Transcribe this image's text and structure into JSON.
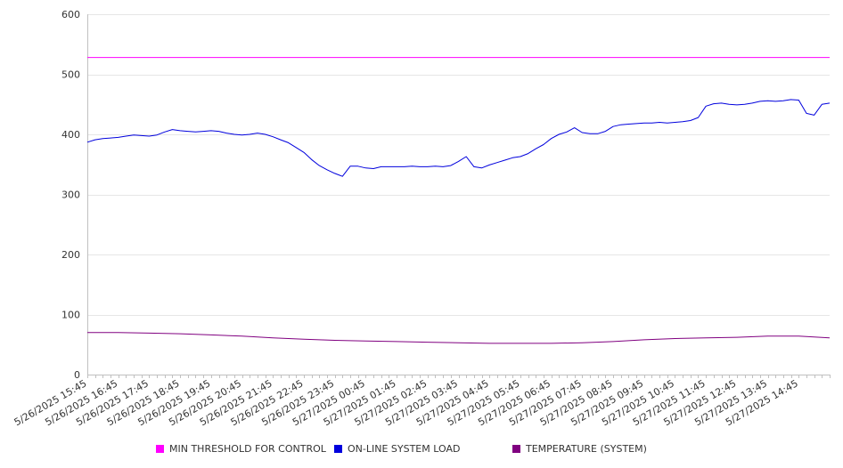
{
  "colors": {
    "background": "#ffffff",
    "grid": "#e6e6e6",
    "axis": "#c0c0c0",
    "text": "#333333"
  },
  "chart_data": {
    "type": "line",
    "title": "",
    "xlabel": "",
    "ylabel": "",
    "ylim": [
      0,
      600
    ],
    "y_ticks": [
      0,
      100,
      200,
      300,
      400,
      500,
      600
    ],
    "grid": "horizontal",
    "legend_position": "bottom",
    "x_labels": [
      "5/26/2025 15:45",
      "5/26/2025 16:45",
      "5/26/2025 17:45",
      "5/26/2025 18:45",
      "5/26/2025 19:45",
      "5/26/2025 20:45",
      "5/26/2025 21:45",
      "5/26/2025 22:45",
      "5/26/2025 23:45",
      "5/27/2025 00:45",
      "5/27/2025 01:45",
      "5/27/2025 02:45",
      "5/27/2025 03:45",
      "5/27/2025 04:45",
      "5/27/2025 05:45",
      "5/27/2025 06:45",
      "5/27/2025 07:45",
      "5/27/2025 08:45",
      "5/27/2025 09:45",
      "5/27/2025 10:45",
      "5/27/2025 11:45",
      "5/27/2025 12:45",
      "5/27/2025 13:45",
      "5/27/2025 14:45"
    ],
    "x_start": "5/26/2025 15:45",
    "x_end": "5/27/2025 15:45",
    "series": [
      {
        "name": "MIN THRESHOLD FOR CONTROL",
        "color": "#ff00ff",
        "points": [
          [
            "5/26/2025 15:45",
            528
          ],
          [
            "5/27/2025 15:45",
            528
          ]
        ]
      },
      {
        "name": "ON-LINE SYSTEM LOAD",
        "color": "#0000dd",
        "points": [
          [
            "5/26/2025 15:45",
            387
          ],
          [
            "5/26/2025 16:00",
            391
          ],
          [
            "5/26/2025 16:15",
            393
          ],
          [
            "5/26/2025 16:30",
            394
          ],
          [
            "5/26/2025 16:45",
            395
          ],
          [
            "5/26/2025 17:00",
            397
          ],
          [
            "5/26/2025 17:15",
            399
          ],
          [
            "5/26/2025 17:30",
            398
          ],
          [
            "5/26/2025 17:45",
            397
          ],
          [
            "5/26/2025 18:00",
            399
          ],
          [
            "5/26/2025 18:15",
            404
          ],
          [
            "5/26/2025 18:30",
            408
          ],
          [
            "5/26/2025 18:45",
            406
          ],
          [
            "5/26/2025 19:00",
            405
          ],
          [
            "5/26/2025 19:15",
            404
          ],
          [
            "5/26/2025 19:30",
            405
          ],
          [
            "5/26/2025 19:45",
            406
          ],
          [
            "5/26/2025 20:00",
            405
          ],
          [
            "5/26/2025 20:15",
            402
          ],
          [
            "5/26/2025 20:30",
            400
          ],
          [
            "5/26/2025 20:45",
            399
          ],
          [
            "5/26/2025 21:00",
            400
          ],
          [
            "5/26/2025 21:15",
            402
          ],
          [
            "5/26/2025 21:30",
            400
          ],
          [
            "5/26/2025 21:45",
            396
          ],
          [
            "5/26/2025 22:00",
            391
          ],
          [
            "5/26/2025 22:15",
            386
          ],
          [
            "5/26/2025 22:30",
            378
          ],
          [
            "5/26/2025 22:45",
            370
          ],
          [
            "5/26/2025 23:00",
            358
          ],
          [
            "5/26/2025 23:15",
            348
          ],
          [
            "5/26/2025 23:30",
            341
          ],
          [
            "5/26/2025 23:45",
            335
          ],
          [
            "5/27/2025 00:00",
            330
          ],
          [
            "5/27/2025 00:15",
            347
          ],
          [
            "5/27/2025 00:30",
            347
          ],
          [
            "5/27/2025 00:45",
            344
          ],
          [
            "5/27/2025 01:00",
            343
          ],
          [
            "5/27/2025 01:15",
            346
          ],
          [
            "5/27/2025 01:30",
            346
          ],
          [
            "5/27/2025 01:45",
            346
          ],
          [
            "5/27/2025 02:00",
            346
          ],
          [
            "5/27/2025 02:15",
            347
          ],
          [
            "5/27/2025 02:30",
            346
          ],
          [
            "5/27/2025 02:45",
            346
          ],
          [
            "5/27/2025 03:00",
            347
          ],
          [
            "5/27/2025 03:15",
            346
          ],
          [
            "5/27/2025 03:30",
            348
          ],
          [
            "5/27/2025 03:45",
            355
          ],
          [
            "5/27/2025 04:00",
            363
          ],
          [
            "5/27/2025 04:15",
            346
          ],
          [
            "5/27/2025 04:30",
            344
          ],
          [
            "5/27/2025 04:45",
            349
          ],
          [
            "5/27/2025 05:00",
            353
          ],
          [
            "5/27/2025 05:15",
            357
          ],
          [
            "5/27/2025 05:30",
            361
          ],
          [
            "5/27/2025 05:45",
            363
          ],
          [
            "5/27/2025 06:00",
            368
          ],
          [
            "5/27/2025 06:15",
            376
          ],
          [
            "5/27/2025 06:30",
            383
          ],
          [
            "5/27/2025 06:45",
            393
          ],
          [
            "5/27/2025 07:00",
            400
          ],
          [
            "5/27/2025 07:15",
            404
          ],
          [
            "5/27/2025 07:30",
            411
          ],
          [
            "5/27/2025 07:45",
            403
          ],
          [
            "5/27/2025 08:00",
            401
          ],
          [
            "5/27/2025 08:15",
            401
          ],
          [
            "5/27/2025 08:30",
            405
          ],
          [
            "5/27/2025 08:45",
            413
          ],
          [
            "5/27/2025 09:00",
            416
          ],
          [
            "5/27/2025 09:15",
            417
          ],
          [
            "5/27/2025 09:30",
            418
          ],
          [
            "5/27/2025 09:45",
            419
          ],
          [
            "5/27/2025 10:00",
            419
          ],
          [
            "5/27/2025 10:15",
            420
          ],
          [
            "5/27/2025 10:30",
            419
          ],
          [
            "5/27/2025 10:45",
            420
          ],
          [
            "5/27/2025 11:00",
            421
          ],
          [
            "5/27/2025 11:15",
            423
          ],
          [
            "5/27/2025 11:30",
            428
          ],
          [
            "5/27/2025 11:45",
            447
          ],
          [
            "5/27/2025 12:00",
            451
          ],
          [
            "5/27/2025 12:15",
            452
          ],
          [
            "5/27/2025 12:30",
            450
          ],
          [
            "5/27/2025 12:45",
            449
          ],
          [
            "5/27/2025 13:00",
            450
          ],
          [
            "5/27/2025 13:15",
            452
          ],
          [
            "5/27/2025 13:30",
            455
          ],
          [
            "5/27/2025 13:45",
            456
          ],
          [
            "5/27/2025 14:00",
            455
          ],
          [
            "5/27/2025 14:15",
            456
          ],
          [
            "5/27/2025 14:30",
            458
          ],
          [
            "5/27/2025 14:45",
            457
          ],
          [
            "5/27/2025 15:00",
            435
          ],
          [
            "5/27/2025 15:15",
            432
          ],
          [
            "5/27/2025 15:30",
            450
          ],
          [
            "5/27/2025 15:45",
            452
          ]
        ]
      },
      {
        "name": "TEMPERATURE (SYSTEM)",
        "color": "#800080",
        "points": [
          [
            "5/26/2025 15:45",
            70
          ],
          [
            "5/26/2025 16:45",
            70
          ],
          [
            "5/26/2025 17:45",
            69
          ],
          [
            "5/26/2025 18:45",
            68
          ],
          [
            "5/26/2025 19:45",
            66
          ],
          [
            "5/26/2025 20:45",
            64
          ],
          [
            "5/26/2025 21:45",
            61
          ],
          [
            "5/26/2025 22:45",
            59
          ],
          [
            "5/26/2025 23:45",
            57
          ],
          [
            "5/27/2025 00:45",
            56
          ],
          [
            "5/27/2025 01:45",
            55
          ],
          [
            "5/27/2025 02:45",
            54
          ],
          [
            "5/27/2025 03:45",
            53
          ],
          [
            "5/27/2025 04:45",
            52
          ],
          [
            "5/27/2025 05:45",
            52
          ],
          [
            "5/27/2025 06:45",
            52
          ],
          [
            "5/27/2025 07:45",
            53
          ],
          [
            "5/27/2025 08:45",
            55
          ],
          [
            "5/27/2025 09:45",
            58
          ],
          [
            "5/27/2025 10:45",
            60
          ],
          [
            "5/27/2025 11:45",
            61
          ],
          [
            "5/27/2025 12:45",
            62
          ],
          [
            "5/27/2025 13:45",
            64
          ],
          [
            "5/27/2025 14:45",
            64
          ],
          [
            "5/27/2025 15:45",
            61
          ]
        ]
      }
    ]
  }
}
